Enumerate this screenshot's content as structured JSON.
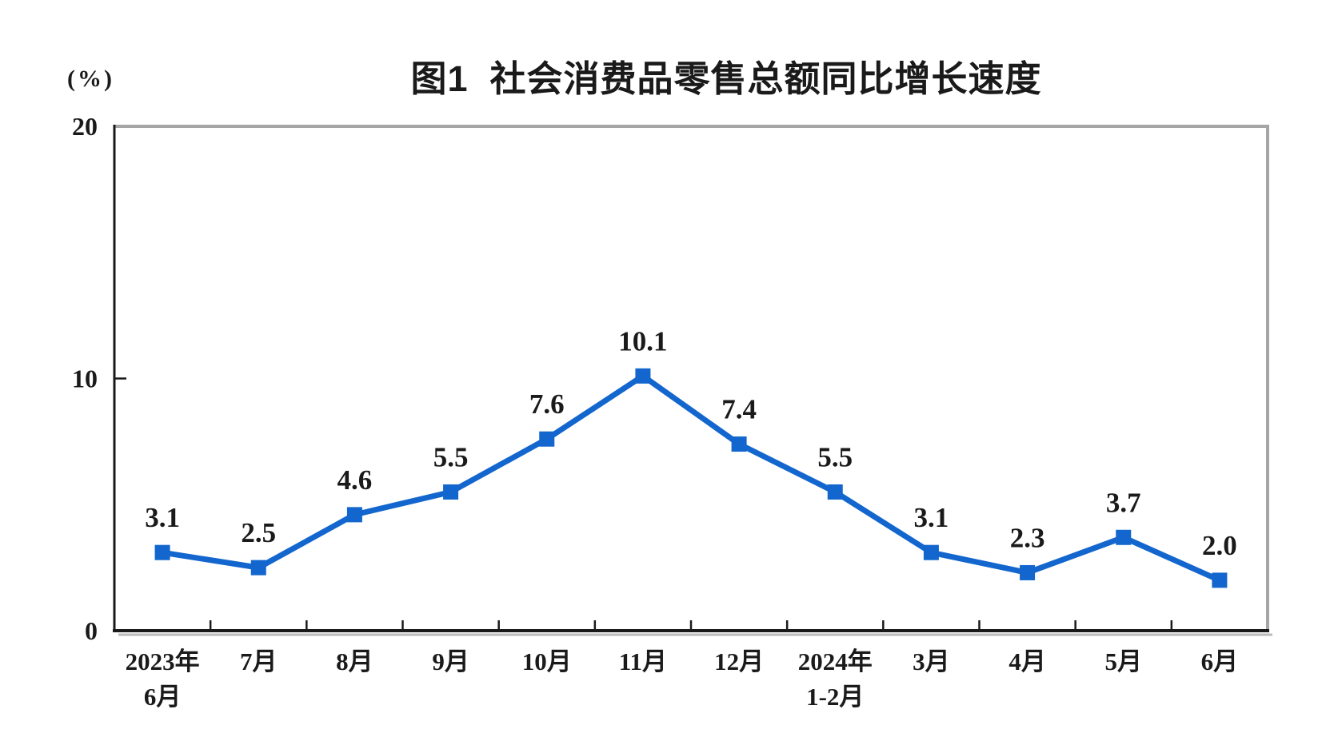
{
  "chart_data": {
    "type": "line",
    "title": "图1  社会消费品零售总额同比增长速度",
    "y_unit": "(%)",
    "categories": [
      {
        "lines": [
          "2023年",
          "6月"
        ]
      },
      {
        "lines": [
          "7月"
        ]
      },
      {
        "lines": [
          "8月"
        ]
      },
      {
        "lines": [
          "9月"
        ]
      },
      {
        "lines": [
          "10月"
        ]
      },
      {
        "lines": [
          "11月"
        ]
      },
      {
        "lines": [
          "12月"
        ]
      },
      {
        "lines": [
          "2024年",
          "1-2月"
        ]
      },
      {
        "lines": [
          "3月"
        ]
      },
      {
        "lines": [
          "4月"
        ]
      },
      {
        "lines": [
          "5月"
        ]
      },
      {
        "lines": [
          "6月"
        ]
      }
    ],
    "values": [
      3.1,
      2.5,
      4.6,
      5.5,
      7.6,
      10.1,
      7.4,
      5.5,
      3.1,
      2.3,
      3.7,
      2.0
    ],
    "value_labels": [
      "3.1",
      "2.5",
      "4.6",
      "5.5",
      "7.6",
      "10.1",
      "7.4",
      "5.5",
      "3.1",
      "2.3",
      "3.7",
      "2.0"
    ],
    "ylim": [
      0,
      20
    ],
    "yticks": [
      0,
      10,
      20
    ],
    "grid": false,
    "legend": false,
    "marker": "square",
    "line_color": "#1266cd",
    "axis_color": "#1a1a1a",
    "border_color": "#a6a6a6",
    "shadow_color": "#bbbbbb",
    "label_color": "#1a1a1a"
  }
}
